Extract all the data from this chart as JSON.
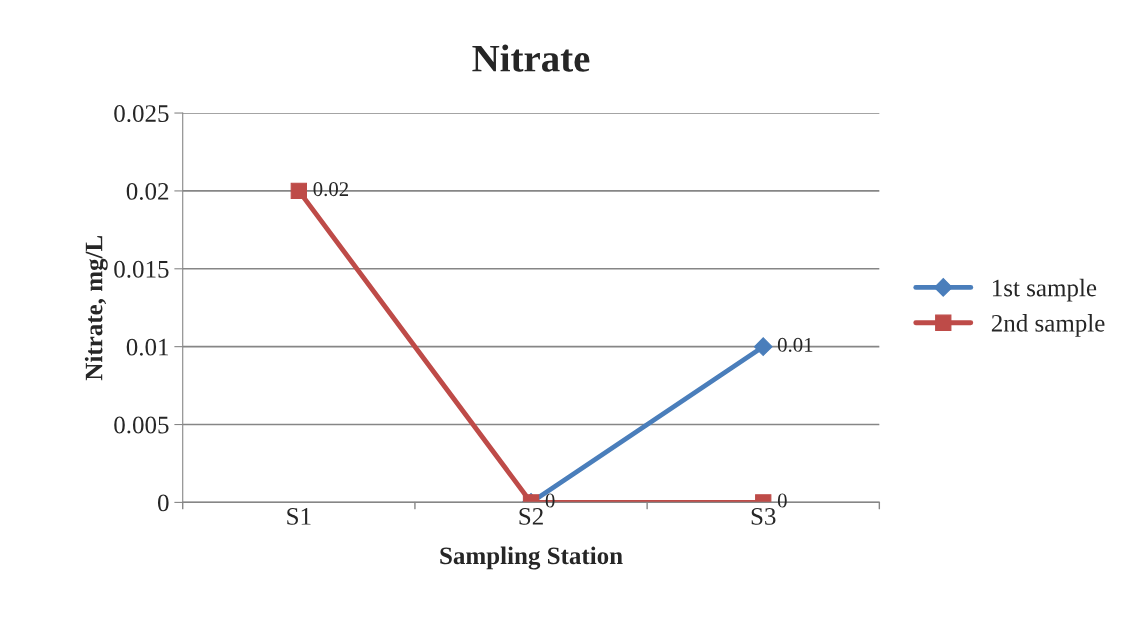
{
  "chart_data": {
    "type": "line",
    "title": "Nitrate",
    "xlabel": "Sampling Station",
    "ylabel": "Nitrate, mg/L",
    "categories": [
      "S1",
      "S2",
      "S3"
    ],
    "series": [
      {
        "name": "1st sample",
        "color": "#4a7ebb",
        "marker": "diamond",
        "values": [
          null,
          0,
          0.01
        ],
        "value_labels": [
          null,
          null,
          "0.01"
        ]
      },
      {
        "name": "2nd sample",
        "color": "#be4b48",
        "marker": "square",
        "values": [
          0.02,
          0,
          0
        ],
        "value_labels": [
          "0.02",
          "0",
          "0"
        ]
      }
    ],
    "ylim": [
      0,
      0.025
    ],
    "yticks": [
      0,
      0.005,
      0.01,
      0.015,
      0.02,
      0.025
    ],
    "grid": "y",
    "legend": "right"
  }
}
